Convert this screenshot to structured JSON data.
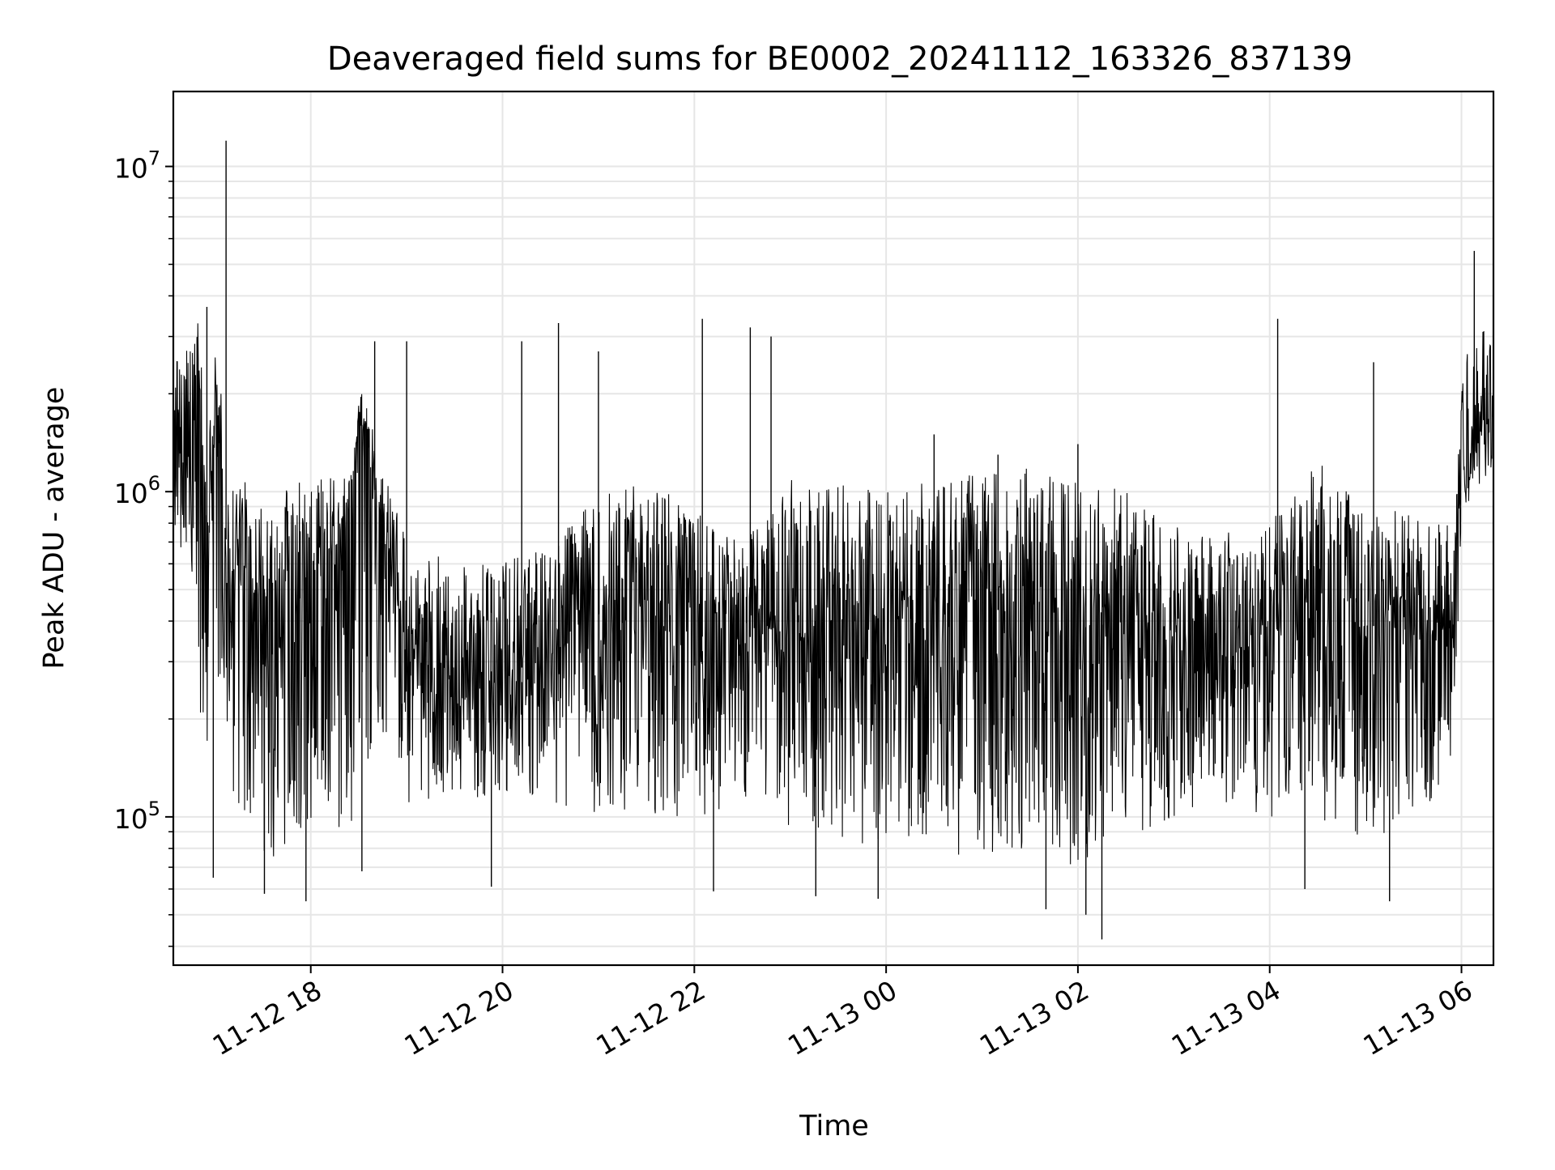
{
  "chart_data": {
    "type": "line",
    "title": "Deaveraged field sums for BE0002_20241112_163326_837139",
    "xlabel": "Time",
    "ylabel": "Peak ADU - average",
    "y_scale": "log",
    "grid": true,
    "legend": "none",
    "colors": {
      "line": "#000000",
      "grid": "#e6e6e6",
      "axes": "#000000",
      "background": "#ffffff"
    },
    "xlim": [
      "2024-11-12 16:34",
      "2024-11-13 06:20"
    ],
    "ylim": [
      35000,
      17000000
    ],
    "x_ticks": [
      "2024-11-12 18:00",
      "2024-11-12 20:00",
      "2024-11-12 22:00",
      "2024-11-13 00:00",
      "2024-11-13 02:00",
      "2024-11-13 04:00",
      "2024-11-13 06:00"
    ],
    "x_tick_labels": [
      "11-12 18",
      "11-12 20",
      "11-12 22",
      "11-13 00",
      "11-13 02",
      "11-13 04",
      "11-13 06"
    ],
    "y_ticks": [
      100000,
      1000000,
      10000000
    ],
    "y_tick_labels": [
      {
        "base": "10",
        "exp": "5"
      },
      {
        "base": "10",
        "exp": "6"
      },
      {
        "base": "10",
        "exp": "7"
      }
    ],
    "series": [
      {
        "x": [
          "2024-11-12 16:34",
          "2024-11-12 16:45",
          "2024-11-12 16:50",
          "2024-11-12 16:55",
          "2024-11-12 17:00",
          "2024-11-12 17:10",
          "2024-11-12 17:15",
          "2024-11-12 17:30",
          "2024-11-12 18:00",
          "2024-11-12 18:25",
          "2024-11-12 18:30",
          "2024-11-12 19:00",
          "2024-11-12 19:30",
          "2024-11-12 20:00",
          "2024-11-12 20:30",
          "2024-11-12 21:00",
          "2024-11-12 21:30",
          "2024-11-12 22:00",
          "2024-11-12 22:30",
          "2024-11-12 22:50",
          "2024-11-12 23:00",
          "2024-11-12 23:30",
          "2024-11-13 00:00",
          "2024-11-13 00:30",
          "2024-11-13 01:00",
          "2024-11-13 01:30",
          "2024-11-13 02:00",
          "2024-11-13 02:30",
          "2024-11-13 03:00",
          "2024-11-13 03:30",
          "2024-11-13 04:00",
          "2024-11-13 04:30",
          "2024-11-13 05:00",
          "2024-11-13 05:30",
          "2024-11-13 05:55",
          "2024-11-13 06:00",
          "2024-11-13 06:10",
          "2024-11-13 06:20"
        ],
        "y": [
          1200000,
          1500000,
          2500000,
          500000,
          1800000,
          480000,
          600000,
          500000,
          550000,
          600000,
          1800000,
          320000,
          280000,
          280000,
          300000,
          420000,
          450000,
          360000,
          350000,
          380000,
          350000,
          450000,
          400000,
          420000,
          450000,
          400000,
          380000,
          400000,
          320000,
          320000,
          360000,
          450000,
          380000,
          420000,
          400000,
          1200000,
          1500000,
          1800000
        ],
        "low_envelope": [
          700000,
          600000,
          200000,
          80000,
          300000,
          100000,
          80000,
          70000,
          90000,
          90000,
          150000,
          110000,
          110000,
          120000,
          110000,
          100000,
          100000,
          100000,
          100000,
          110000,
          90000,
          80000,
          80000,
          80000,
          70000,
          80000,
          70000,
          80000,
          100000,
          110000,
          100000,
          100000,
          80000,
          90000,
          150000,
          800000,
          1000000,
          1100000
        ],
        "high_envelope": [
          2500000,
          3000000,
          3500000,
          1200000,
          3000000,
          1100000,
          1100000,
          1000000,
          1100000,
          1100000,
          2200000,
          700000,
          600000,
          600000,
          700000,
          1000000,
          1100000,
          900000,
          700000,
          900000,
          1100000,
          1100000,
          1000000,
          1100000,
          1200000,
          1200000,
          1100000,
          1000000,
          800000,
          750000,
          800000,
          1300000,
          900000,
          900000,
          800000,
          2500000,
          3000000,
          3500000
        ],
        "spikes": [
          {
            "x": "2024-11-12 17:07",
            "y": 12000000
          },
          {
            "x": "2024-11-12 16:55",
            "y": 3700000
          },
          {
            "x": "2024-11-12 16:59",
            "y": 65000
          },
          {
            "x": "2024-11-12 17:31",
            "y": 58000
          },
          {
            "x": "2024-11-12 17:57",
            "y": 55000
          },
          {
            "x": "2024-11-12 18:32",
            "y": 68000
          },
          {
            "x": "2024-11-12 18:40",
            "y": 2900000
          },
          {
            "x": "2024-11-12 19:00",
            "y": 2900000
          },
          {
            "x": "2024-11-12 19:53",
            "y": 61000
          },
          {
            "x": "2024-11-12 20:12",
            "y": 2900000
          },
          {
            "x": "2024-11-12 20:35",
            "y": 3300000
          },
          {
            "x": "2024-11-12 21:00",
            "y": 2700000
          },
          {
            "x": "2024-11-12 22:05",
            "y": 3400000
          },
          {
            "x": "2024-11-12 22:12",
            "y": 59000
          },
          {
            "x": "2024-11-12 22:35",
            "y": 3200000
          },
          {
            "x": "2024-11-12 22:48",
            "y": 3000000
          },
          {
            "x": "2024-11-12 23:16",
            "y": 57000
          },
          {
            "x": "2024-11-12 23:55",
            "y": 56000
          },
          {
            "x": "2024-11-13 00:30",
            "y": 1500000
          },
          {
            "x": "2024-11-13 01:10",
            "y": 1300000
          },
          {
            "x": "2024-11-13 01:40",
            "y": 52000
          },
          {
            "x": "2024-11-13 02:00",
            "y": 1400000
          },
          {
            "x": "2024-11-13 02:05",
            "y": 50000
          },
          {
            "x": "2024-11-13 02:15",
            "y": 42000
          },
          {
            "x": "2024-11-13 04:05",
            "y": 3400000
          },
          {
            "x": "2024-11-13 04:22",
            "y": 60000
          },
          {
            "x": "2024-11-13 05:05",
            "y": 2500000
          },
          {
            "x": "2024-11-13 05:15",
            "y": 55000
          },
          {
            "x": "2024-11-13 06:08",
            "y": 5500000
          }
        ]
      }
    ]
  }
}
